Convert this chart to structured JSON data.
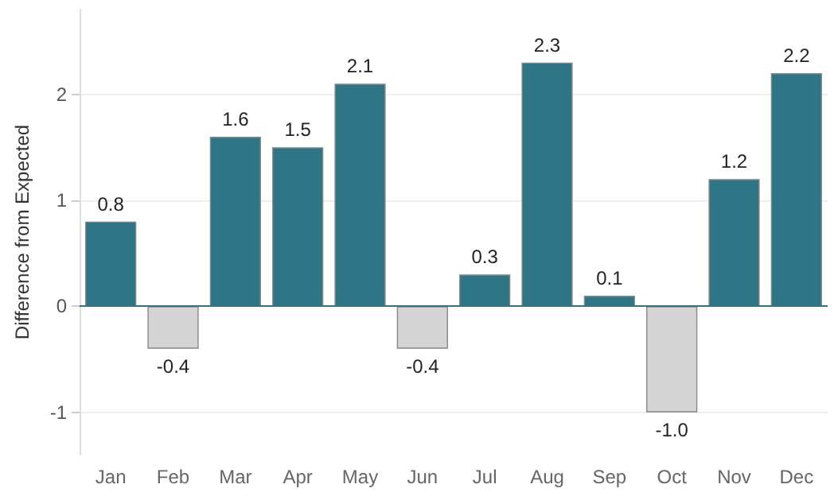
{
  "chart_data": {
    "type": "bar",
    "ylabel": "Difference from Expected",
    "categories": [
      "Jan",
      "Feb",
      "Mar",
      "Apr",
      "May",
      "Jun",
      "Jul",
      "Aug",
      "Sep",
      "Oct",
      "Nov",
      "Dec"
    ],
    "values": [
      0.8,
      -0.4,
      1.6,
      1.5,
      2.1,
      -0.4,
      0.3,
      2.3,
      0.1,
      -1.0,
      1.2,
      2.2
    ],
    "value_labels": [
      "0.8",
      "-0.4",
      "1.6",
      "1.5",
      "2.1",
      "-0.4",
      "0.3",
      "2.3",
      "0.1",
      "-1.0",
      "1.2",
      "2.2"
    ],
    "colors": [
      "#2e7686",
      "#d4d4d4",
      "#2e7686",
      "#2e7686",
      "#2e7686",
      "#d4d4d4",
      "#2e7686",
      "#2e7686",
      "#2e7686",
      "#d4d4d4",
      "#2e7686",
      "#2e7686"
    ],
    "ylim": [
      -1.4,
      2.8
    ],
    "yticks": [
      -1,
      0,
      1,
      2
    ],
    "grid": "y",
    "ref_lines": [
      {
        "axis": "y",
        "value": 0,
        "color": "#2e7686"
      }
    ]
  }
}
